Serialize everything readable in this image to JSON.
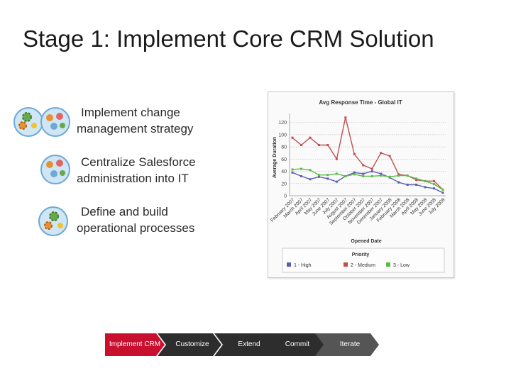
{
  "slide": {
    "title": "Stage 1: Implement Core CRM Solution"
  },
  "bullets": [
    {
      "line1": "Implement change",
      "line2": "management strategy",
      "icon": "gears-people-icon"
    },
    {
      "line1": "Centralize Salesforce",
      "line2": "administration into IT",
      "icon": "people-icon"
    },
    {
      "line1": "Define and build",
      "line2": "operational processes",
      "icon": "gears-icon"
    }
  ],
  "chart_data": {
    "type": "line",
    "title": "Avg Response Time - Global IT",
    "xlabel": "Opened Date",
    "ylabel": "Average Duration",
    "ylim": [
      0,
      130
    ],
    "yticks": [
      0,
      20,
      40,
      60,
      80,
      100,
      120
    ],
    "grid": true,
    "legend_title": "Priority",
    "legend_position": "bottom",
    "categories": [
      "February 2007",
      "March 2007",
      "April 2007",
      "May 2007",
      "June 2007",
      "July 2007",
      "August 2007",
      "September 2007",
      "October 2007",
      "November 2007",
      "December 2007",
      "January 2008",
      "February 2008",
      "March 2008",
      "April 2008",
      "May 2008",
      "June 2008",
      "July 2008"
    ],
    "series": [
      {
        "name": "1 - High",
        "color": "#5a5fb0",
        "values": [
          38,
          32,
          27,
          31,
          28,
          23,
          32,
          38,
          36,
          40,
          36,
          30,
          22,
          18,
          18,
          14,
          12,
          5
        ]
      },
      {
        "name": "2 - Medium",
        "color": "#c0504d",
        "values": [
          95,
          83,
          95,
          83,
          83,
          60,
          128,
          68,
          50,
          44,
          70,
          65,
          35,
          33,
          26,
          24,
          24,
          10
        ]
      },
      {
        "name": "3 - Low",
        "color": "#5cba47",
        "values": [
          43,
          44,
          42,
          34,
          34,
          36,
          32,
          35,
          32,
          32,
          33,
          31,
          33,
          33,
          28,
          24,
          19,
          10
        ]
      }
    ]
  },
  "process": {
    "steps": [
      {
        "label": "Implement CRM",
        "color": "#c8102e"
      },
      {
        "label": "Customize",
        "color": "#2d2d2d"
      },
      {
        "label": "Extend",
        "color": "#2d2d2d"
      },
      {
        "label": "Commit",
        "color": "#2d2d2d"
      },
      {
        "label": "Iterate",
        "color": "#555555"
      }
    ]
  }
}
